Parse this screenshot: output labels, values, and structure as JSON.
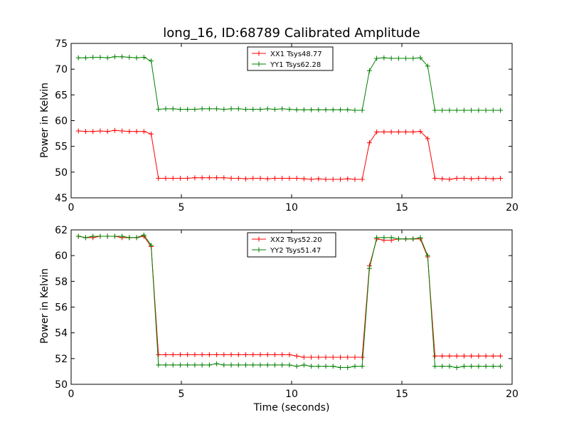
{
  "figure": {
    "title": "long_16, ID:68789 Calibrated Amplitude"
  },
  "chart_data": [
    {
      "type": "line",
      "title": "long_16, ID:68789 Calibrated Amplitude",
      "xlabel": "",
      "ylabel": "Power in Kelvin",
      "xlim": [
        0,
        20
      ],
      "ylim": [
        45,
        75
      ],
      "xticks": [
        "0",
        "5",
        "10",
        "15",
        "20"
      ],
      "yticks": [
        "45",
        "50",
        "55",
        "60",
        "65",
        "70",
        "75"
      ],
      "grid": false,
      "legend": "top-center",
      "x": [
        0.33,
        0.66,
        0.99,
        1.32,
        1.65,
        1.98,
        2.31,
        2.64,
        2.97,
        3.3,
        3.63,
        3.96,
        4.29,
        4.62,
        4.95,
        5.28,
        5.61,
        5.94,
        6.27,
        6.6,
        6.93,
        7.26,
        7.59,
        7.92,
        8.25,
        8.58,
        8.91,
        9.24,
        9.57,
        9.9,
        10.23,
        10.56,
        10.89,
        11.22,
        11.55,
        11.88,
        12.21,
        12.54,
        12.87,
        13.2,
        13.53,
        13.86,
        14.19,
        14.52,
        14.85,
        15.18,
        15.51,
        15.84,
        16.17,
        16.5,
        16.83,
        17.16,
        17.49,
        17.82,
        18.15,
        18.48,
        18.81,
        19.14,
        19.47
      ],
      "series": [
        {
          "name": "XX1 Tsys48.77",
          "color": "#ff0000",
          "values": [
            58.0,
            57.9,
            57.9,
            58.0,
            57.9,
            58.1,
            58.0,
            57.9,
            57.9,
            57.9,
            57.4,
            48.8,
            48.8,
            48.8,
            48.8,
            48.8,
            48.9,
            48.9,
            48.9,
            48.9,
            48.9,
            48.8,
            48.8,
            48.7,
            48.8,
            48.8,
            48.7,
            48.8,
            48.8,
            48.8,
            48.8,
            48.7,
            48.6,
            48.7,
            48.6,
            48.6,
            48.6,
            48.7,
            48.6,
            48.6,
            55.7,
            57.8,
            57.8,
            57.8,
            57.8,
            57.8,
            57.8,
            57.9,
            56.5,
            48.8,
            48.7,
            48.6,
            48.8,
            48.8,
            48.7,
            48.8,
            48.8,
            48.7,
            48.8
          ]
        },
        {
          "name": "YY1 Tsys62.28",
          "color": "#008000",
          "values": [
            72.2,
            72.2,
            72.3,
            72.3,
            72.2,
            72.4,
            72.4,
            72.3,
            72.2,
            72.3,
            71.6,
            62.2,
            62.3,
            62.3,
            62.2,
            62.2,
            62.2,
            62.3,
            62.3,
            62.3,
            62.2,
            62.3,
            62.3,
            62.2,
            62.2,
            62.2,
            62.3,
            62.2,
            62.3,
            62.2,
            62.1,
            62.1,
            62.1,
            62.1,
            62.1,
            62.1,
            62.1,
            62.1,
            62.0,
            62.0,
            69.7,
            72.1,
            72.2,
            72.1,
            72.1,
            72.1,
            72.1,
            72.2,
            70.6,
            62.0,
            62.0,
            62.0,
            62.0,
            62.0,
            62.0,
            62.0,
            62.0,
            62.0,
            62.0
          ]
        }
      ]
    },
    {
      "type": "line",
      "title": "",
      "xlabel": "Time (seconds)",
      "ylabel": "Power in Kelvin",
      "xlim": [
        0,
        20
      ],
      "ylim": [
        50,
        62
      ],
      "xticks": [
        "0",
        "5",
        "10",
        "15",
        "20"
      ],
      "yticks": [
        "50",
        "52",
        "54",
        "56",
        "58",
        "60",
        "62"
      ],
      "grid": false,
      "legend": "top-center",
      "x": [
        0.33,
        0.66,
        0.99,
        1.32,
        1.65,
        1.98,
        2.31,
        2.64,
        2.97,
        3.3,
        3.63,
        3.96,
        4.29,
        4.62,
        4.95,
        5.28,
        5.61,
        5.94,
        6.27,
        6.6,
        6.93,
        7.26,
        7.59,
        7.92,
        8.25,
        8.58,
        8.91,
        9.24,
        9.57,
        9.9,
        10.23,
        10.56,
        10.89,
        11.22,
        11.55,
        11.88,
        12.21,
        12.54,
        12.87,
        13.2,
        13.53,
        13.86,
        14.19,
        14.52,
        14.85,
        15.18,
        15.51,
        15.84,
        16.17,
        16.5,
        16.83,
        17.16,
        17.49,
        17.82,
        18.15,
        18.48,
        18.81,
        19.14,
        19.47
      ],
      "series": [
        {
          "name": "XX2 Tsys52.20",
          "color": "#ff0000",
          "values": [
            61.5,
            61.4,
            61.4,
            61.5,
            61.5,
            61.5,
            61.4,
            61.4,
            61.4,
            61.5,
            60.7,
            52.3,
            52.3,
            52.3,
            52.3,
            52.3,
            52.3,
            52.3,
            52.3,
            52.3,
            52.3,
            52.3,
            52.3,
            52.3,
            52.3,
            52.3,
            52.3,
            52.3,
            52.3,
            52.3,
            52.2,
            52.1,
            52.1,
            52.1,
            52.1,
            52.1,
            52.1,
            52.1,
            52.1,
            52.1,
            59.2,
            61.3,
            61.2,
            61.2,
            61.3,
            61.3,
            61.3,
            61.3,
            59.9,
            52.2,
            52.2,
            52.2,
            52.2,
            52.2,
            52.2,
            52.2,
            52.2,
            52.2,
            52.2
          ]
        },
        {
          "name": "YY2 Tsys51.47",
          "color": "#008000",
          "values": [
            61.5,
            61.4,
            61.5,
            61.5,
            61.5,
            61.5,
            61.5,
            61.4,
            61.4,
            61.6,
            60.8,
            51.5,
            51.5,
            51.5,
            51.5,
            51.5,
            51.5,
            51.5,
            51.5,
            51.6,
            51.5,
            51.5,
            51.5,
            51.5,
            51.5,
            51.5,
            51.5,
            51.5,
            51.5,
            51.5,
            51.4,
            51.5,
            51.4,
            51.4,
            51.4,
            51.4,
            51.3,
            51.3,
            51.4,
            51.4,
            59.0,
            61.4,
            61.4,
            61.4,
            61.3,
            61.3,
            61.3,
            61.4,
            60.0,
            51.4,
            51.4,
            51.4,
            51.3,
            51.4,
            51.4,
            51.4,
            51.4,
            51.4,
            51.4
          ]
        }
      ]
    }
  ]
}
